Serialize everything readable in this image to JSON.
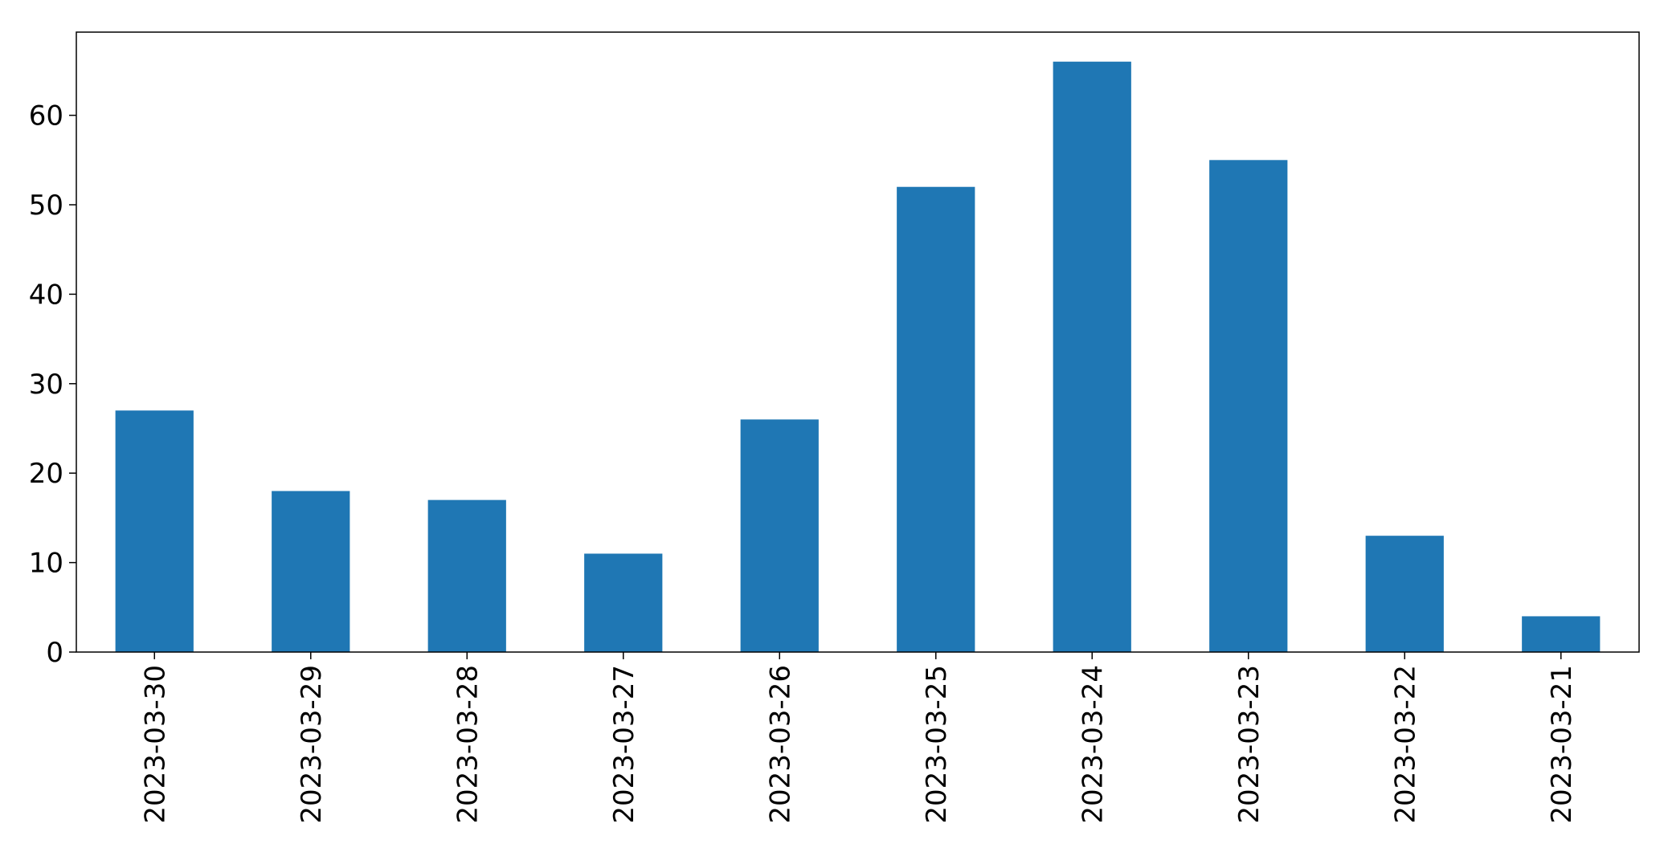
{
  "chart_data": {
    "type": "bar",
    "title": "",
    "xlabel": "",
    "ylabel": "",
    "categories": [
      "2023-03-30",
      "2023-03-29",
      "2023-03-28",
      "2023-03-27",
      "2023-03-26",
      "2023-03-25",
      "2023-03-24",
      "2023-03-23",
      "2023-03-22",
      "2023-03-21"
    ],
    "values": [
      27,
      18,
      17,
      11,
      26,
      52,
      66,
      55,
      13,
      4
    ],
    "ylim": [
      0,
      69.3
    ],
    "yticks": [
      0,
      10,
      20,
      30,
      40,
      50,
      60
    ],
    "bar_color": "#1f77b4",
    "grid": false,
    "legend": "none"
  }
}
